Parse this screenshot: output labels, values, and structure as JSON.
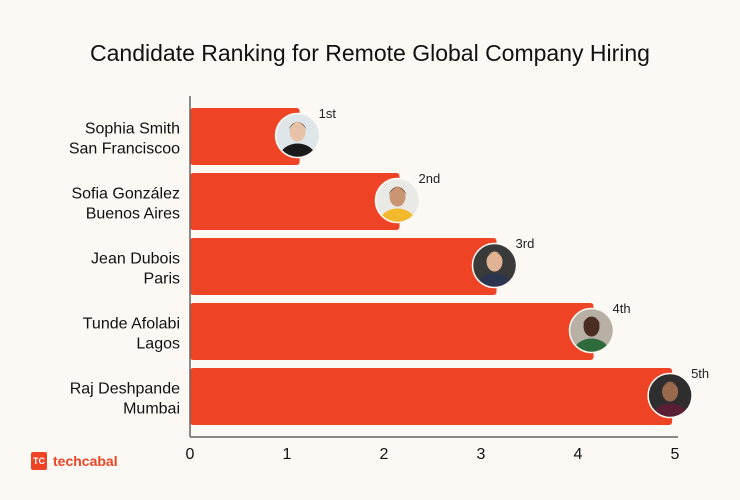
{
  "chart_data": {
    "type": "bar",
    "orientation": "horizontal",
    "title": "Candidate Ranking for Remote Global Company Hiring",
    "categories": [
      [
        "Sophia Smith",
        "San Franciscoo"
      ],
      [
        "Sofia González",
        "Buenos Aires"
      ],
      [
        "Jean Dubois",
        "Paris"
      ],
      [
        "Tunde Afolabi",
        "Lagos"
      ],
      [
        "Raj Deshpande",
        "Mumbai"
      ]
    ],
    "values": [
      1.13,
      2.16,
      3.16,
      4.16,
      4.97
    ],
    "rank_labels": [
      "1st",
      "2nd",
      "3rd",
      "4th",
      "5th"
    ],
    "xlim": [
      0,
      5
    ],
    "xticks": [
      "0",
      "1",
      "2",
      "3",
      "4",
      "5"
    ],
    "xlabel": "",
    "ylabel": "",
    "grid": false,
    "bar_color": "#ee4325"
  },
  "brand": {
    "logo_mark": "TC",
    "name": "techcabal"
  },
  "colors": {
    "background": "#fcf8f3",
    "accent": "#ee4325"
  }
}
